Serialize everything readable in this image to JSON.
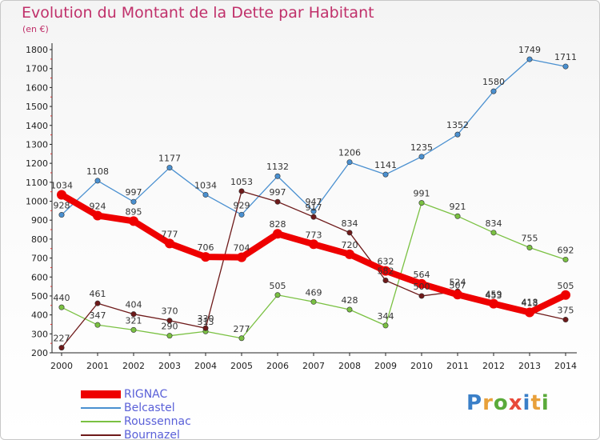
{
  "header": {
    "title": "Evolution du Montant de la Dette par Habitant",
    "subtitle": "(en €)"
  },
  "logo": {
    "text": "Proxiti",
    "letters": [
      {
        "ch": "P",
        "color": "#3a7fc8"
      },
      {
        "ch": "r",
        "color": "#e8a03a"
      },
      {
        "ch": "o",
        "color": "#5aaa3a"
      },
      {
        "ch": "x",
        "color": "#e84a3a"
      },
      {
        "ch": "i",
        "color": "#3a7fc8"
      },
      {
        "ch": "t",
        "color": "#e8a03a"
      },
      {
        "ch": "i",
        "color": "#5aaa3a"
      }
    ]
  },
  "chart_data": {
    "type": "line",
    "title": "Evolution du Montant de la Dette par Habitant",
    "subtitle": "(en €)",
    "xlabel": "",
    "ylabel": "",
    "x": [
      "2000",
      "2001",
      "2002",
      "2003",
      "2004",
      "2005",
      "2006",
      "2007",
      "2008",
      "2009",
      "2010",
      "2011",
      "2012",
      "2013",
      "2014"
    ],
    "ylim": [
      200,
      1800
    ],
    "yticks": [
      200,
      300,
      400,
      500,
      600,
      700,
      800,
      900,
      1000,
      1100,
      1200,
      1300,
      1400,
      1500,
      1600,
      1700,
      1800
    ],
    "grid": false,
    "legend_position": "bottom-left",
    "series": [
      {
        "name": "RIGNAC",
        "color": "#ee0000",
        "style": "thick",
        "values": [
          1034,
          924,
          895,
          777,
          706,
          704,
          828,
          773,
          720,
          632,
          564,
          507,
          459,
          413,
          505
        ],
        "labels": [
          "1034",
          "924",
          "895",
          "777",
          "706",
          "704",
          "828",
          "773",
          "720",
          "632",
          "564",
          "507",
          "459",
          "413",
          "505"
        ]
      },
      {
        "name": "Belcastel",
        "color": "#4a90d0",
        "style": "thin",
        "values": [
          928,
          1108,
          997,
          1177,
          1034,
          929,
          1132,
          947,
          1206,
          1141,
          1235,
          1352,
          1580,
          1749,
          1711
        ],
        "labels": [
          "928",
          "1108",
          "997",
          "1177",
          "1034",
          "929",
          "1132",
          "947",
          "1206",
          "1141",
          "1235",
          "1352",
          "1580",
          "1749",
          "1711"
        ]
      },
      {
        "name": "Roussennac",
        "color": "#7ac142",
        "style": "thin",
        "values": [
          440,
          347,
          321,
          290,
          313,
          277,
          505,
          469,
          428,
          344,
          991,
          921,
          834,
          755,
          692
        ],
        "labels": [
          "440",
          "347",
          "321",
          "290",
          "313",
          "277",
          "505",
          "469",
          "428",
          "344",
          "991",
          "921",
          "834",
          "755",
          "692"
        ]
      },
      {
        "name": "Bournazel",
        "color": "#6e1a1a",
        "style": "thin",
        "values": [
          227,
          461,
          404,
          370,
          330,
          1053,
          997,
          917,
          834,
          582,
          500,
          524,
          453,
          418,
          375
        ],
        "labels": [
          "227",
          "461",
          "404",
          "370",
          "330",
          "1053",
          "997",
          "917",
          "834",
          "582",
          "500",
          "524",
          "453",
          "418",
          "375"
        ]
      }
    ]
  }
}
